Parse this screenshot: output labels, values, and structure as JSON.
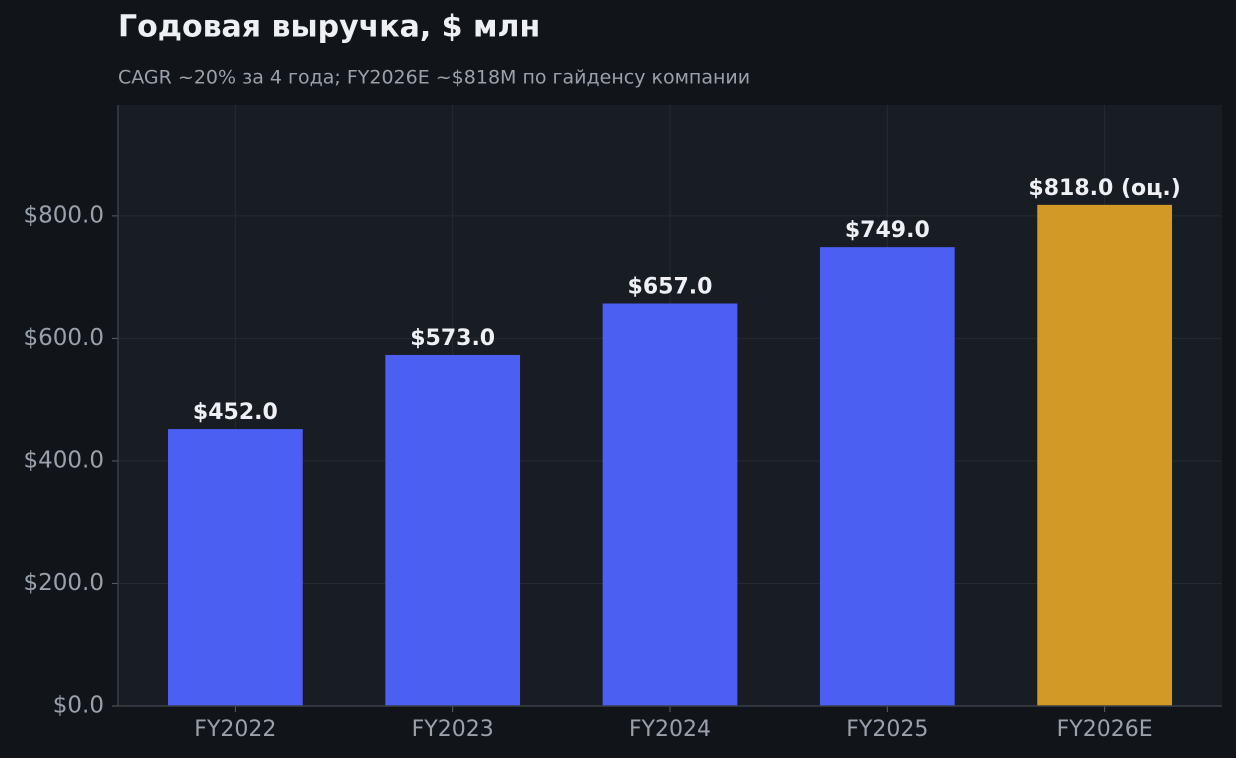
{
  "chart_data": {
    "type": "bar",
    "title": "Годовая выручка, $ млн",
    "subtitle": "CAGR ~20% за 4 года; FY2026E ~$818M по гайденсу компании",
    "categories": [
      "FY2022",
      "FY2023",
      "FY2024",
      "FY2025",
      "FY2026E"
    ],
    "values": [
      452,
      573,
      657,
      749,
      818
    ],
    "value_labels": [
      "$452.0",
      "$573.0",
      "$657.0",
      "$749.0",
      "$818.0 (оц.)"
    ],
    "colors": [
      "#4b5ff2",
      "#4b5ff2",
      "#4b5ff2",
      "#4b5ff2",
      "#d29a25"
    ],
    "ylim": [
      0,
      981
    ],
    "yticks": [
      {
        "value": 0,
        "label": "$0.0"
      },
      {
        "value": 200,
        "label": "$200.0"
      },
      {
        "value": 400,
        "label": "$400.0"
      },
      {
        "value": 600,
        "label": "$600.0"
      },
      {
        "value": 800,
        "label": "$800.0"
      }
    ],
    "grid": true
  }
}
